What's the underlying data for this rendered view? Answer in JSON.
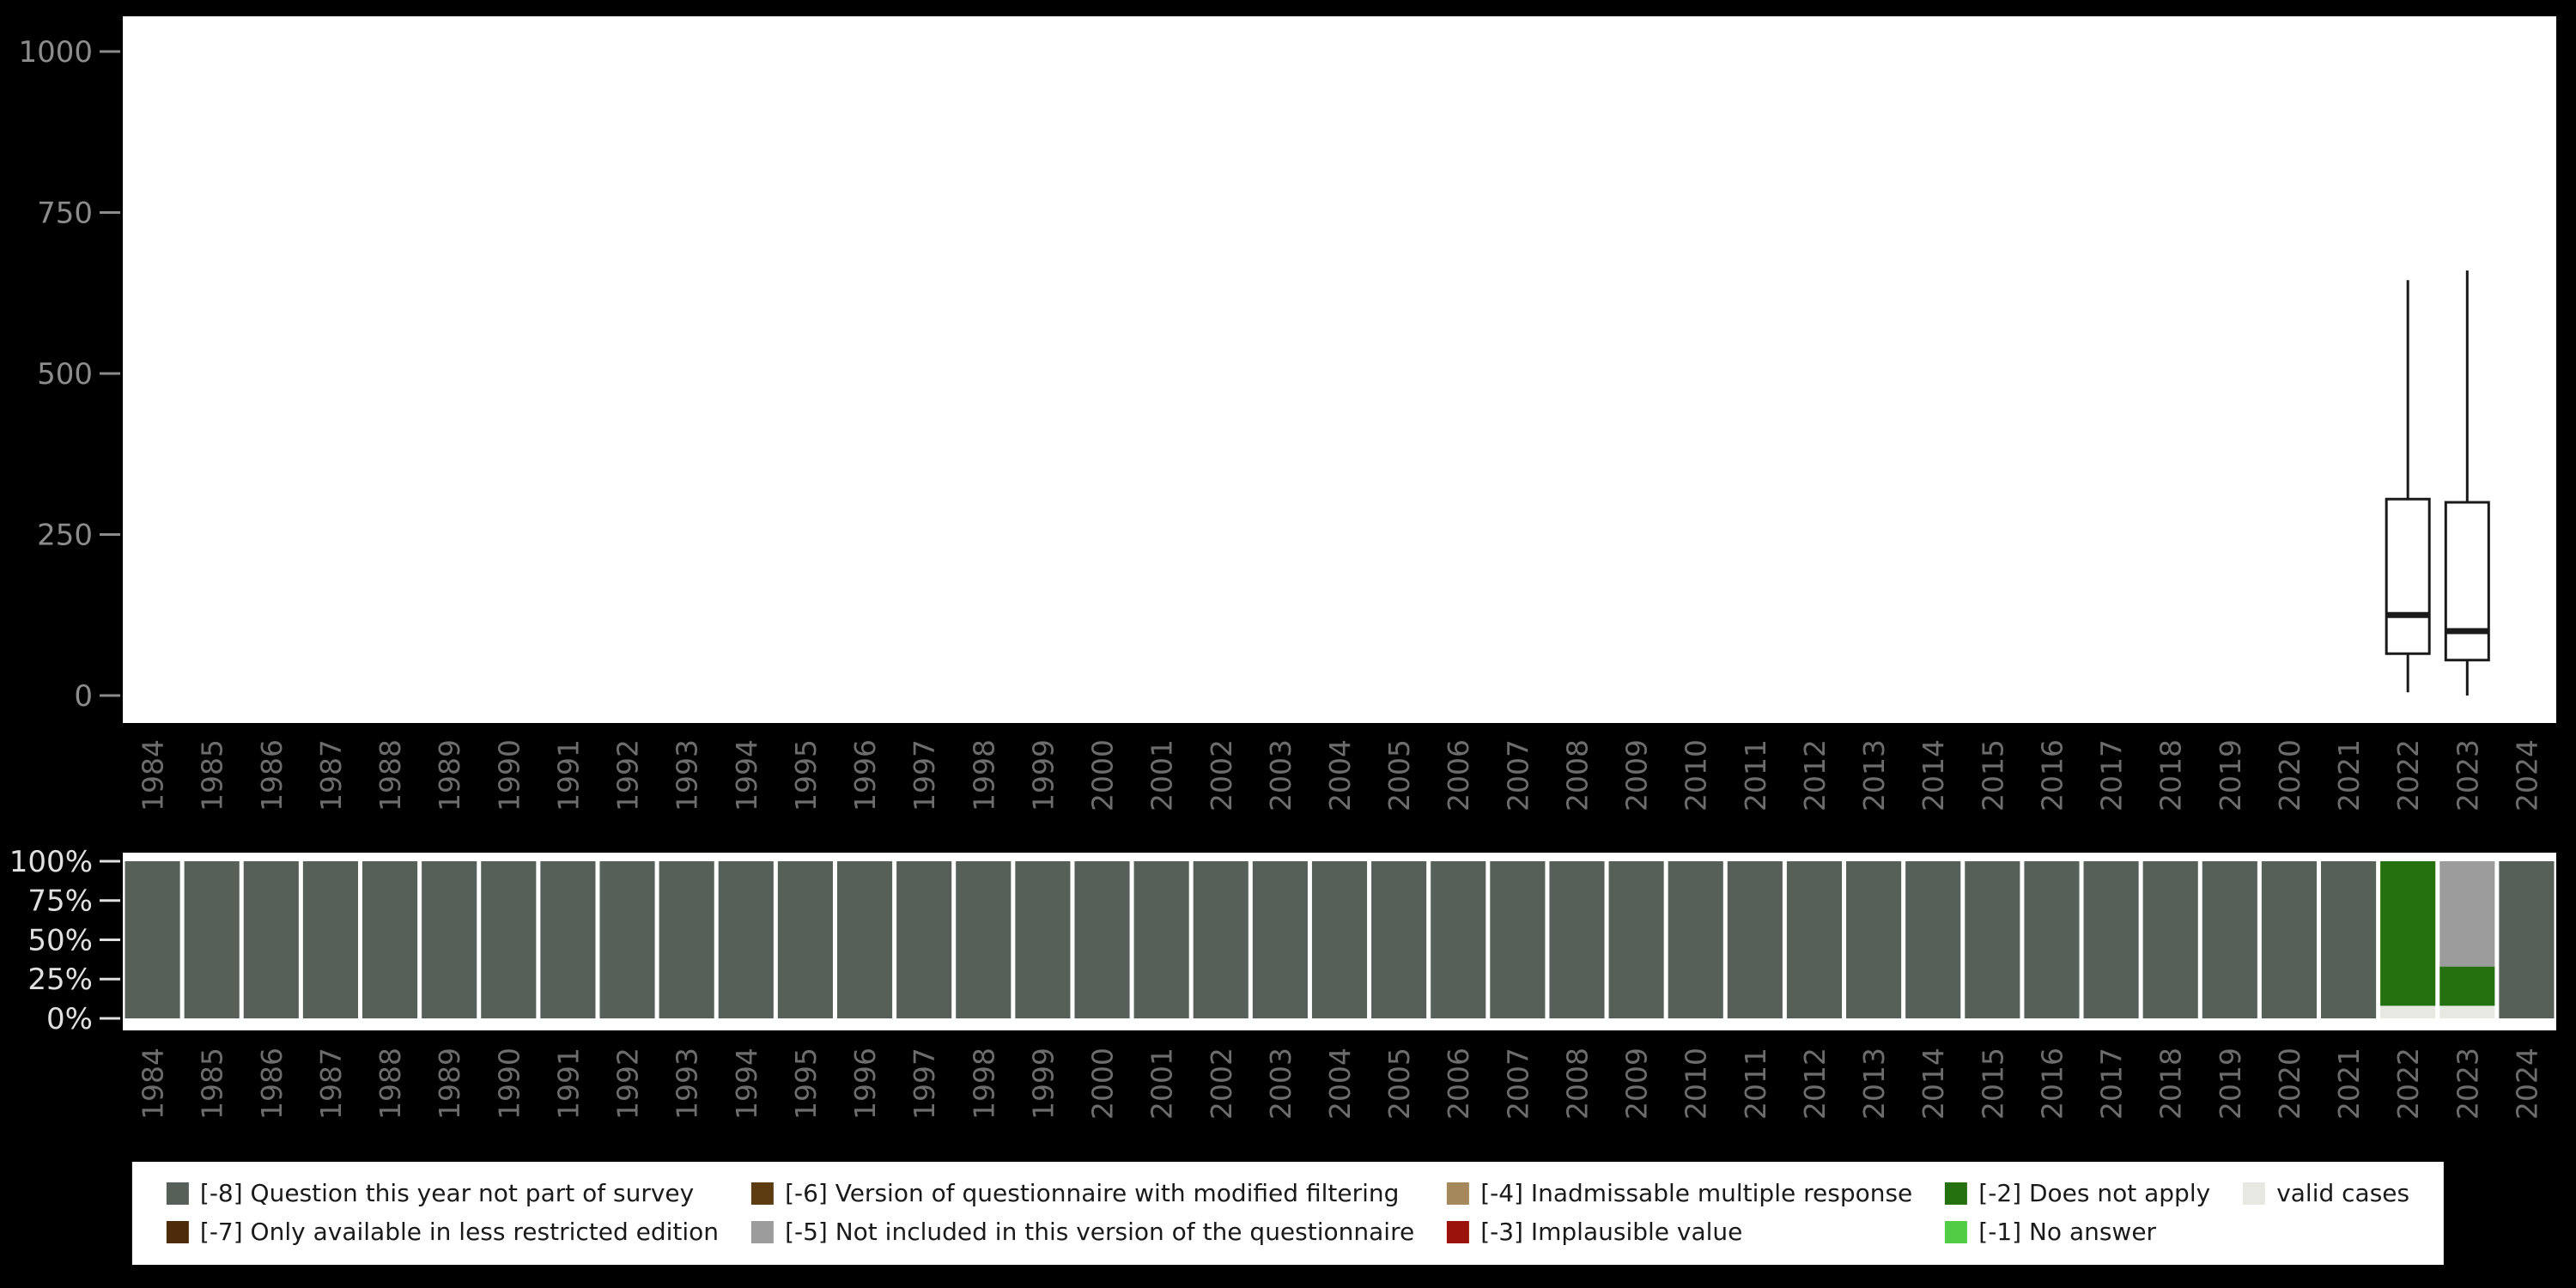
{
  "page": {
    "background": "#000000"
  },
  "colors": {
    "panel": "#ffffff",
    "axis_text_top": "#8c8c8c",
    "axis_text_percent": "#e0e0e0",
    "axis_text_years": "#6d6d6d",
    "tick_top": "#8c8c8c",
    "tick_bottom": "#e0e0e0",
    "box_stroke": "#1a1a1a",
    "legend_bg": "#ffffff",
    "legend_text": "#1a1a1a",
    "m8": "#566058",
    "m7": "#4e2c0a",
    "m6": "#5e3c12",
    "m5": "#9c9c9c",
    "m4": "#a5885c",
    "m3": "#9b110c",
    "m2": "#25700f",
    "m1": "#52cc44",
    "valid": "#e8e8e3"
  },
  "legend": {
    "items": [
      {
        "key": "m8",
        "label": "[-8] Question this year not part of survey"
      },
      {
        "key": "m7",
        "label": "[-7] Only available in less restricted edition"
      },
      {
        "key": "m6",
        "label": "[-6] Version of questionnaire with modified filtering"
      },
      {
        "key": "m5",
        "label": "[-5] Not included in this version of the questionnaire"
      },
      {
        "key": "m4",
        "label": "[-4] Inadmissable multiple response"
      },
      {
        "key": "m3",
        "label": "[-3] Implausible value"
      },
      {
        "key": "m2",
        "label": "[-2] Does not apply"
      },
      {
        "key": "m1",
        "label": "[-1] No answer"
      },
      {
        "key": "valid",
        "label": "valid cases"
      }
    ]
  },
  "chart_data": [
    {
      "type": "boxplot",
      "title": "",
      "xlabel": "",
      "ylabel": "",
      "ylim": [
        0,
        1000
      ],
      "yticks": [
        0,
        250,
        500,
        750,
        1000
      ],
      "grid": false,
      "categories": [
        1984,
        1985,
        1986,
        1987,
        1988,
        1989,
        1990,
        1991,
        1992,
        1993,
        1994,
        1995,
        1996,
        1997,
        1998,
        1999,
        2000,
        2001,
        2002,
        2003,
        2004,
        2005,
        2006,
        2007,
        2008,
        2009,
        2010,
        2011,
        2012,
        2013,
        2014,
        2015,
        2016,
        2017,
        2018,
        2019,
        2020,
        2021,
        2022,
        2023,
        2024
      ],
      "boxes": [
        {
          "year": 2022,
          "min": 5,
          "q1": 65,
          "median": 125,
          "q3": 305,
          "max": 645
        },
        {
          "year": 2023,
          "min": 0,
          "q1": 55,
          "median": 100,
          "q3": 300,
          "max": 660
        }
      ]
    },
    {
      "type": "bar",
      "stacked": true,
      "unit": "percent",
      "title": "",
      "xlabel": "",
      "ylabel": "",
      "ylim": [
        0,
        100
      ],
      "ytick_labels": [
        "0%",
        "25%",
        "50%",
        "75%",
        "100%"
      ],
      "grid": false,
      "legend_position": "bottom",
      "stack_order": "bottom-to-top",
      "categories": [
        1984,
        1985,
        1986,
        1987,
        1988,
        1989,
        1990,
        1991,
        1992,
        1993,
        1994,
        1995,
        1996,
        1997,
        1998,
        1999,
        2000,
        2001,
        2002,
        2003,
        2004,
        2005,
        2006,
        2007,
        2008,
        2009,
        2010,
        2011,
        2012,
        2013,
        2014,
        2015,
        2016,
        2017,
        2018,
        2019,
        2020,
        2021,
        2022,
        2023,
        2024
      ],
      "series": [
        {
          "name": "valid cases",
          "color_key": "valid",
          "values": [
            0,
            0,
            0,
            0,
            0,
            0,
            0,
            0,
            0,
            0,
            0,
            0,
            0,
            0,
            0,
            0,
            0,
            0,
            0,
            0,
            0,
            0,
            0,
            0,
            0,
            0,
            0,
            0,
            0,
            0,
            0,
            0,
            0,
            0,
            0,
            0,
            0,
            0,
            8,
            8,
            0
          ]
        },
        {
          "name": "[-2] Does not apply",
          "color_key": "m2",
          "values": [
            0,
            0,
            0,
            0,
            0,
            0,
            0,
            0,
            0,
            0,
            0,
            0,
            0,
            0,
            0,
            0,
            0,
            0,
            0,
            0,
            0,
            0,
            0,
            0,
            0,
            0,
            0,
            0,
            0,
            0,
            0,
            0,
            0,
            0,
            0,
            0,
            0,
            0,
            92,
            25,
            0
          ]
        },
        {
          "name": "[-5] Not included in this version of the questionnaire",
          "color_key": "m5",
          "values": [
            0,
            0,
            0,
            0,
            0,
            0,
            0,
            0,
            0,
            0,
            0,
            0,
            0,
            0,
            0,
            0,
            0,
            0,
            0,
            0,
            0,
            0,
            0,
            0,
            0,
            0,
            0,
            0,
            0,
            0,
            0,
            0,
            0,
            0,
            0,
            0,
            0,
            0,
            0,
            67,
            0
          ]
        },
        {
          "name": "[-8] Question this year not part of survey",
          "color_key": "m8",
          "values": [
            100,
            100,
            100,
            100,
            100,
            100,
            100,
            100,
            100,
            100,
            100,
            100,
            100,
            100,
            100,
            100,
            100,
            100,
            100,
            100,
            100,
            100,
            100,
            100,
            100,
            100,
            100,
            100,
            100,
            100,
            100,
            100,
            100,
            100,
            100,
            100,
            100,
            100,
            0,
            0,
            100
          ]
        }
      ]
    }
  ]
}
